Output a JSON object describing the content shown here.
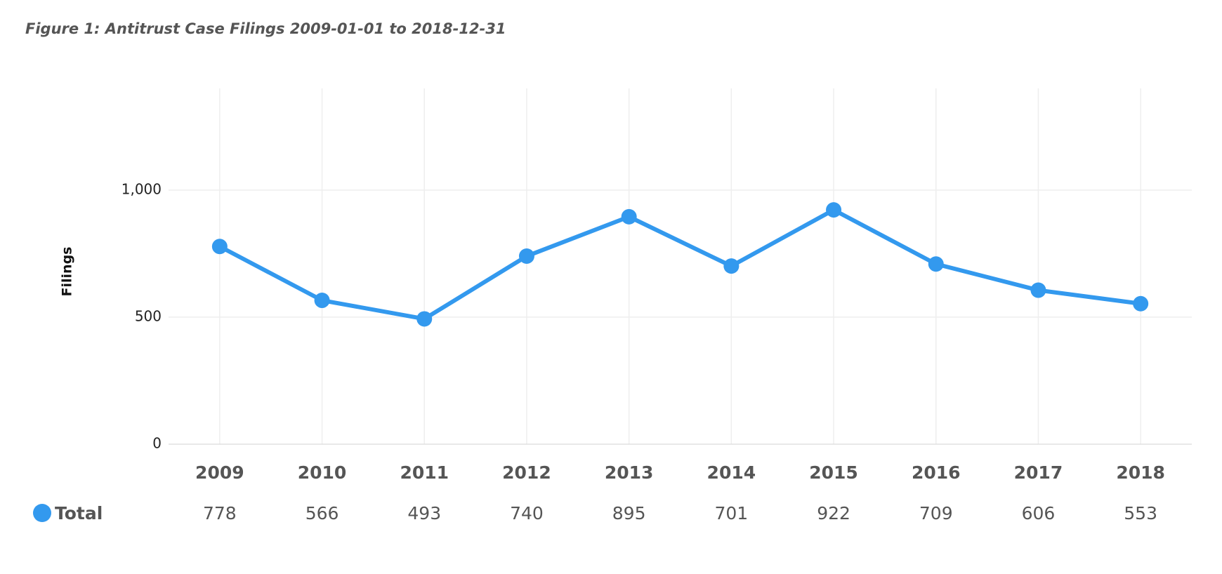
{
  "chart_data": {
    "type": "line",
    "title": "Figure 1: Antitrust Case Filings 2009-01-01 to 2018-12-31",
    "y_label": "Filings",
    "categories": [
      "2009",
      "2010",
      "2011",
      "2012",
      "2013",
      "2014",
      "2015",
      "2016",
      "2017",
      "2018"
    ],
    "series": [
      {
        "name": "Total",
        "color": "#3399ee",
        "values": [
          778,
          566,
          493,
          740,
          895,
          701,
          922,
          709,
          606,
          553
        ]
      }
    ],
    "ylim": [
      0,
      1400
    ],
    "yticks": [
      0,
      500,
      {
        "value": 1000,
        "label": "1,000"
      }
    ],
    "grid": true
  }
}
